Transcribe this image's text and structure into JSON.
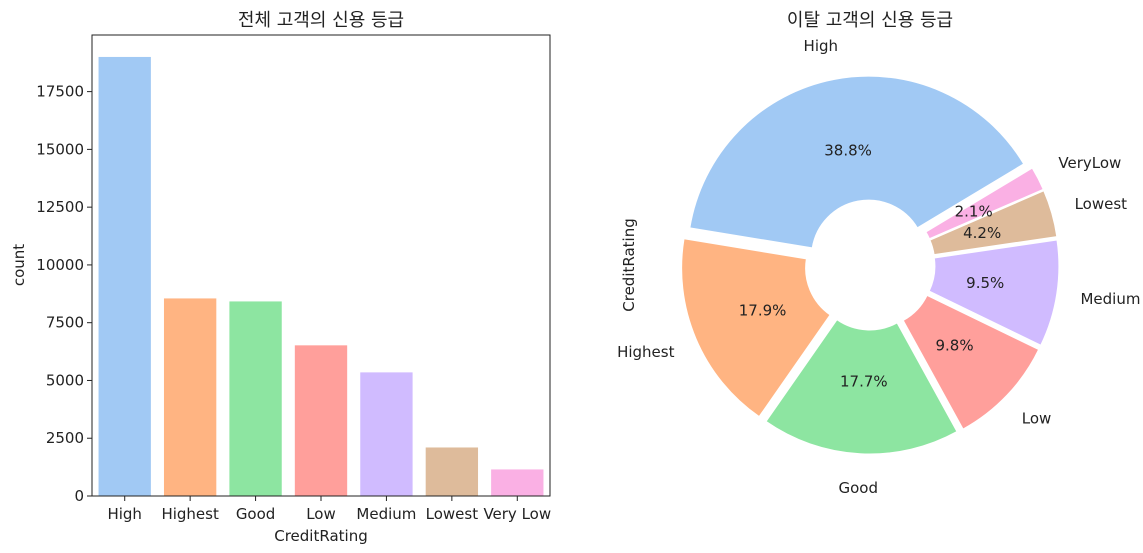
{
  "chart_data": [
    {
      "type": "bar",
      "title": "전체 고객의 신용 등급",
      "xlabel": "CreditRating",
      "ylabel": "count",
      "categories": [
        "High",
        "Highest",
        "Good",
        "Low",
        "Medium",
        "Lowest",
        "Very Low"
      ],
      "values": [
        19000,
        8550,
        8420,
        6520,
        5350,
        2100,
        1150
      ],
      "yticks": [
        "0",
        "2500",
        "5000",
        "7500",
        "10000",
        "12500",
        "15000",
        "17500"
      ],
      "ylim": [
        0,
        19950
      ],
      "colors": [
        "#a1c9f4",
        "#ffb482",
        "#8de5a1",
        "#ff9f9b",
        "#d0bbff",
        "#debb9b",
        "#fab0e4"
      ],
      "grid": false
    },
    {
      "type": "pie",
      "title": "이탈 고객의 신용 등급",
      "ylabel": "CreditRating",
      "labels": [
        "High",
        "Highest",
        "Good",
        "Low",
        "Medium",
        "Lowest",
        "VeryLow"
      ],
      "values": [
        38.8,
        17.9,
        17.7,
        9.8,
        9.5,
        4.2,
        2.1
      ],
      "pct_labels": [
        "38.8%",
        "17.9%",
        "17.7%",
        "9.8%",
        "9.5%",
        "4.2%",
        "2.1%"
      ],
      "colors": [
        "#a1c9f4",
        "#ffb482",
        "#8de5a1",
        "#ff9f9b",
        "#d0bbff",
        "#debb9b",
        "#fab0e4"
      ],
      "donut": true,
      "exploded": true
    }
  ]
}
